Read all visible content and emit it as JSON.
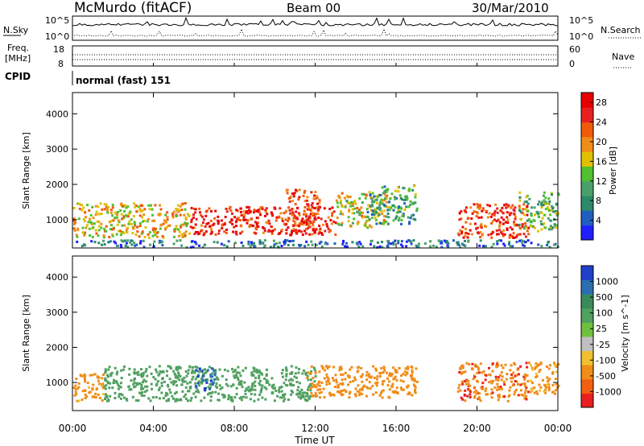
{
  "header": {
    "station": "McMurdo (fitACF)",
    "beam": "Beam 00",
    "date": "30/Mar/2010"
  },
  "noise_panel": {
    "left_label": "N.Sky",
    "right_label": "N.Search",
    "left_ticks": [
      "10^5",
      "10^0"
    ],
    "right_ticks": [
      "10^5",
      "10^0"
    ]
  },
  "freq_panel": {
    "left_label_1": "Freq.",
    "left_label_2": "[MHz]",
    "right_label": "Nave",
    "left_ticks": [
      "18",
      "8"
    ],
    "right_ticks": [
      "60",
      "0"
    ]
  },
  "cpid": {
    "label": "CPID",
    "value": "normal (fast) 151"
  },
  "colors": {
    "power_scale": [
      "#1f1fff",
      "#1f5fc0",
      "#2a8a6a",
      "#4aa06a",
      "#50c030",
      "#e0c000",
      "#f08c18",
      "#f05a0a",
      "#e82020",
      "#e80000"
    ],
    "velocity_scale": [
      "#1f40c8",
      "#2a70b0",
      "#3a8a5a",
      "#50a060",
      "#70c040",
      "#c0c0c0",
      "#f0c030",
      "#f08c18",
      "#f06010",
      "#e82020"
    ]
  },
  "chart_data": [
    {
      "type": "heatmap",
      "name": "power",
      "xlabel": "Time UT",
      "ylabel": "Slant Range [km]",
      "xlim": [
        0,
        24
      ],
      "ylim": [
        200,
        4600
      ],
      "x_ticks": [
        "00:00",
        "04:00",
        "08:00",
        "12:00",
        "16:00",
        "20:00",
        "00:00"
      ],
      "y_ticks": [
        1000,
        2000,
        3000,
        4000
      ],
      "colorbar_label": "Power [dB]",
      "colorbar_ticks": [
        "4",
        "8",
        "12",
        "16",
        "20",
        "24",
        "28"
      ],
      "colorbar_range": [
        0,
        30
      ],
      "regions": [
        {
          "t0": 0.0,
          "t1": 5.8,
          "r0": 500,
          "r1": 1500,
          "level": 18
        },
        {
          "t0": 5.8,
          "t1": 13.0,
          "r0": 600,
          "r1": 1400,
          "level": 26
        },
        {
          "t0": 10.5,
          "t1": 12.2,
          "r0": 700,
          "r1": 1900,
          "level": 24
        },
        {
          "t0": 13.0,
          "t1": 15.5,
          "r0": 800,
          "r1": 1800,
          "level": 16
        },
        {
          "t0": 14.5,
          "t1": 17.0,
          "r0": 900,
          "r1": 2000,
          "level": 10
        },
        {
          "t0": 19.0,
          "t1": 22.5,
          "r0": 500,
          "r1": 1500,
          "level": 24
        },
        {
          "t0": 22.0,
          "t1": 24.0,
          "r0": 700,
          "r1": 1800,
          "level": 12
        },
        {
          "t0": 0.0,
          "t1": 24.0,
          "r0": 250,
          "r1": 450,
          "level": 6
        }
      ]
    },
    {
      "type": "heatmap",
      "name": "velocity",
      "xlabel": "Time UT",
      "ylabel": "Slant Range [km]",
      "xlim": [
        0,
        24
      ],
      "ylim": [
        200,
        4600
      ],
      "x_ticks": [
        "00:00",
        "04:00",
        "08:00",
        "12:00",
        "16:00",
        "20:00",
        "00:00"
      ],
      "y_ticks": [
        1000,
        2000,
        3000,
        4000
      ],
      "colorbar_label": "Velocity [m s^-1]",
      "colorbar_ticks": [
        "1000",
        "500",
        "100",
        "25",
        "-25",
        "-100",
        "-500",
        "-1000"
      ],
      "regions": [
        {
          "t0": 0.0,
          "t1": 1.5,
          "r0": 500,
          "r1": 1300,
          "level": -200
        },
        {
          "t0": 1.5,
          "t1": 12.0,
          "r0": 500,
          "r1": 1500,
          "level": 300
        },
        {
          "t0": 6.0,
          "t1": 7.0,
          "r0": 800,
          "r1": 1500,
          "level": 800
        },
        {
          "t0": 11.5,
          "t1": 17.0,
          "r0": 600,
          "r1": 1500,
          "level": -300
        },
        {
          "t0": 19.0,
          "t1": 22.5,
          "r0": 500,
          "r1": 1600,
          "level": -400
        },
        {
          "t0": 22.5,
          "t1": 24.0,
          "r0": 700,
          "r1": 1600,
          "level": -200
        }
      ]
    }
  ]
}
